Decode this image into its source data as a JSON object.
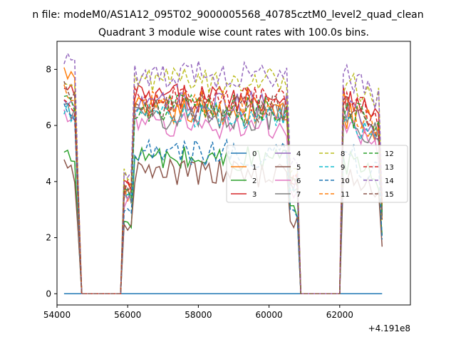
{
  "window": {
    "suptitle": "n file: modeM0/AS1A12_095T02_9000005568_40785cztM0_level2_quad_clean"
  },
  "chart_data": {
    "type": "line",
    "title": "Quadrant 3 module wise count rates with 100.0s bins.",
    "xlabel": "",
    "ylabel": "",
    "x_offset_label": "+4.191e8",
    "xlim": [
      54000,
      64000
    ],
    "ylim": [
      -0.4,
      9.0
    ],
    "xticks": [
      54000,
      56000,
      58000,
      60000,
      62000
    ],
    "xtick_labels": [
      "54000",
      "56000",
      "58000",
      "60000",
      "62000"
    ],
    "yticks": [
      0,
      2,
      4,
      6,
      8
    ],
    "ytick_labels": [
      "0",
      "2",
      "4",
      "6",
      "8"
    ],
    "grid": false,
    "legend_placement": "center-right",
    "legend_columns": 4,
    "series": [
      {
        "name": "0",
        "color": "#1f77b4",
        "dash": "solid",
        "base": 0.0,
        "level": 0.0
      },
      {
        "name": "1",
        "color": "#ff7f0e",
        "dash": "solid",
        "base": 7.9,
        "level": 6.5
      },
      {
        "name": "2",
        "color": "#2ca02c",
        "dash": "solid",
        "base": 5.0,
        "level": 4.8
      },
      {
        "name": "3",
        "color": "#d62728",
        "dash": "solid",
        "base": 7.4,
        "level": 7.0
      },
      {
        "name": "4",
        "color": "#9467bd",
        "dash": "solid",
        "base": 7.1,
        "level": 6.7
      },
      {
        "name": "5",
        "color": "#8c564b",
        "dash": "solid",
        "base": 4.5,
        "level": 4.3
      },
      {
        "name": "6",
        "color": "#e377c2",
        "dash": "solid",
        "base": 6.4,
        "level": 6.0
      },
      {
        "name": "7",
        "color": "#7f7f7f",
        "dash": "solid",
        "base": 6.7,
        "level": 6.3
      },
      {
        "name": "8",
        "color": "#bcbd22",
        "dash": "dashed",
        "base": 7.6,
        "level": 7.6
      },
      {
        "name": "9",
        "color": "#17becf",
        "dash": "dashed",
        "base": 6.6,
        "level": 6.3
      },
      {
        "name": "10",
        "color": "#1f77b4",
        "dash": "dashed",
        "base": 6.5,
        "level": 5.0
      },
      {
        "name": "11",
        "color": "#ff7f0e",
        "dash": "dashed",
        "base": 7.3,
        "level": 6.8
      },
      {
        "name": "12",
        "color": "#2ca02c",
        "dash": "dashed",
        "base": 7.0,
        "level": 6.6
      },
      {
        "name": "13",
        "color": "#d62728",
        "dash": "dashed",
        "base": 7.0,
        "level": 6.9
      },
      {
        "name": "14",
        "color": "#9467bd",
        "dash": "dashed",
        "base": 8.4,
        "level": 7.8
      },
      {
        "name": "15",
        "color": "#8c564b",
        "dash": "dashed",
        "base": 7.3,
        "level": 6.6
      }
    ],
    "segments": [
      {
        "x_start": 54200,
        "x_end": 54600
      },
      {
        "x_start": 55900,
        "x_end": 60800
      },
      {
        "x_start": 62100,
        "x_end": 63200
      }
    ],
    "x_range": [
      54200,
      63200
    ],
    "bin_seconds": 100.0
  }
}
